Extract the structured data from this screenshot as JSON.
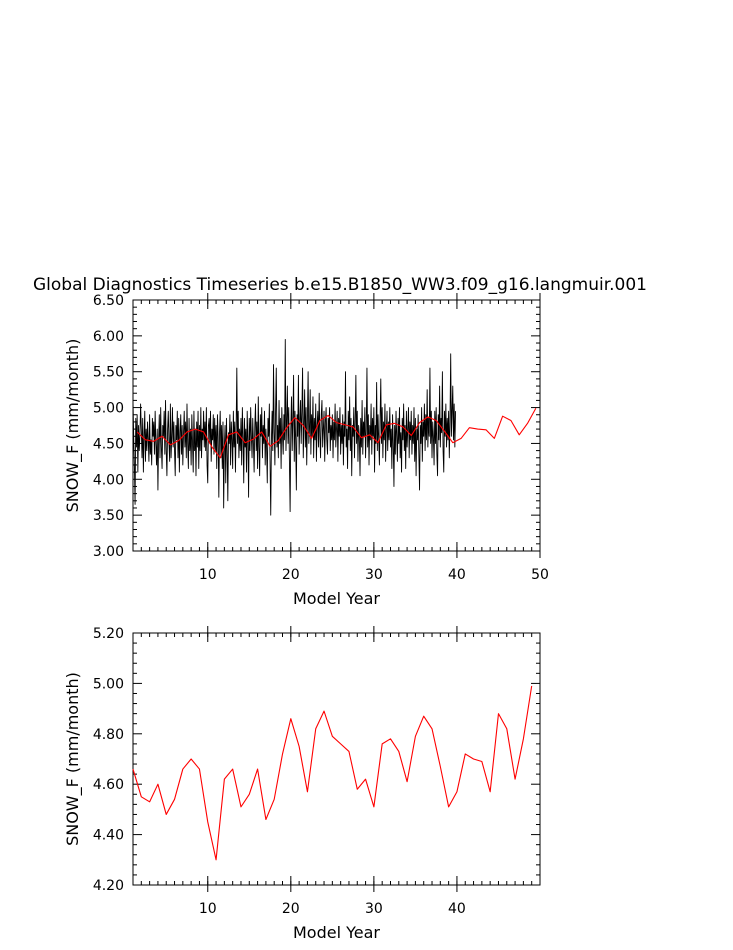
{
  "title": "Global Diagnostics Timeseries b.e15.B1850_WW3.f09_g16.langmuir.001",
  "colors": {
    "monthly": "#000000",
    "annual": "#ff0000"
  },
  "chart_data": [
    {
      "type": "line",
      "xlabel": "Model Year",
      "ylabel": "SNOW_F (mm/month)",
      "xlim": [
        1,
        50
      ],
      "ylim": [
        3.0,
        6.5
      ],
      "xticks": [
        10,
        20,
        30,
        40,
        50
      ],
      "yticks": [
        "3.00",
        "3.50",
        "4.00",
        "4.50",
        "5.00",
        "5.50",
        "6.00",
        "6.50"
      ],
      "series": [
        {
          "color": "monthly",
          "x_start": 1.0,
          "x_step": 0.08333,
          "values": [
            5.1,
            4.6,
            4.2,
            3.65,
            4.85,
            4.45,
            4.9,
            4.1,
            4.75,
            4.4,
            4.6,
            5.05,
            4.7,
            4.3,
            4.85,
            4.1,
            4.6,
            4.95,
            4.25,
            4.7,
            4.4,
            4.8,
            4.55,
            4.25,
            4.9,
            4.35,
            4.55,
            4.2,
            4.85,
            4.6,
            4.8,
            4.35,
            4.95,
            4.5,
            4.2,
            4.7,
            3.85,
            4.55,
            4.9,
            4.3,
            5.0,
            4.45,
            4.15,
            4.75,
            4.6,
            4.95,
            4.35,
            5.1,
            4.4,
            4.05,
            4.7,
            4.95,
            4.5,
            4.25,
            5.05,
            4.3,
            4.6,
            5.0,
            4.45,
            4.8,
            4.4,
            4.05,
            4.75,
            4.55,
            4.95,
            4.3,
            4.85,
            4.1,
            4.65,
            4.9,
            4.35,
            4.75,
            4.2,
            4.65,
            4.95,
            4.45,
            4.8,
            4.3,
            5.05,
            4.5,
            4.15,
            4.85,
            4.4,
            4.7,
            4.2,
            4.9,
            4.5,
            4.1,
            4.95,
            4.4,
            4.7,
            4.05,
            4.8,
            4.45,
            4.95,
            4.15,
            4.75,
            4.4,
            5.0,
            4.3,
            4.7,
            4.55,
            4.95,
            4.45,
            4.8,
            4.4,
            5.0,
            4.2,
            3.95,
            4.75,
            4.85,
            4.5,
            4.95,
            4.25,
            4.7,
            4.55,
            4.9,
            4.35,
            4.85,
            4.4,
            4.75,
            4.15,
            4.9,
            4.6,
            3.75,
            4.65,
            4.95,
            4.3,
            4.75,
            4.15,
            4.8,
            3.6,
            4.45,
            4.75,
            3.95,
            4.85,
            4.4,
            3.7,
            4.65,
            4.5,
            4.9,
            4.2,
            4.8,
            4.55,
            4.15,
            4.95,
            4.45,
            4.8,
            4.1,
            4.7,
            5.55,
            4.5,
            4.95,
            4.3,
            4.7,
            4.4,
            4.85,
            4.2,
            5.0,
            4.6,
            3.95,
            4.85,
            4.45,
            4.7,
            4.1,
            4.95,
            4.55,
            3.75,
            4.85,
            4.4,
            5.0,
            4.6,
            4.3,
            4.85,
            4.5,
            4.1,
            4.75,
            5.05,
            4.4,
            4.8,
            4.15,
            5.15,
            4.45,
            4.05,
            4.9,
            4.6,
            5.0,
            4.3,
            4.75,
            4.5,
            4.95,
            4.2,
            4.7,
            4.45,
            3.95,
            4.85,
            4.6,
            5.05,
            4.25,
            3.5,
            4.55,
            4.95,
            4.4,
            5.6,
            4.7,
            4.2,
            4.95,
            5.55,
            4.45,
            4.75,
            4.3,
            5.1,
            4.5,
            4.85,
            4.15,
            5.0,
            4.6,
            4.35,
            4.9,
            4.55,
            5.95,
            4.4,
            4.8,
            5.3,
            4.5,
            5.0,
            4.25,
            3.55,
            4.7,
            5.15,
            4.4,
            4.85,
            5.45,
            4.25,
            4.95,
            4.55,
            3.85,
            4.9,
            4.6,
            5.45,
            4.35,
            4.8,
            5.1,
            4.5,
            4.95,
            5.55,
            4.3,
            4.75,
            5.25,
            4.45,
            5.0,
            4.2,
            4.85,
            5.5,
            4.5,
            4.7,
            5.25,
            4.35,
            4.9,
            4.6,
            5.15,
            4.3,
            4.85,
            4.55,
            5.05,
            4.25,
            4.75,
            4.95,
            4.45,
            5.2,
            4.6,
            4.3,
            4.9,
            5.1,
            4.45,
            4.7,
            4.95,
            4.25,
            4.8,
            5.0,
            4.55,
            4.35,
            4.85,
            4.65,
            5.0,
            4.4,
            4.75,
            4.55,
            4.9,
            4.3,
            4.8,
            4.55,
            5.05,
            4.45,
            4.7,
            4.95,
            4.25,
            4.85,
            4.6,
            5.0,
            4.35,
            4.75,
            4.5,
            4.9,
            4.2,
            4.8,
            4.6,
            5.5,
            4.45,
            4.7,
            4.15,
            4.95,
            4.55,
            5.15,
            4.4,
            4.85,
            4.05,
            4.75,
            4.6,
            5.0,
            4.3,
            4.8,
            5.45,
            4.5,
            4.95,
            4.25,
            4.75,
            4.6,
            4.05,
            4.85,
            4.45,
            5.1,
            4.35,
            4.8,
            4.6,
            5.0,
            4.3,
            4.7,
            5.55,
            4.45,
            4.9,
            4.2,
            4.75,
            4.55,
            5.05,
            4.35,
            4.85,
            4.6,
            5.0,
            4.1,
            4.75,
            4.5,
            5.35,
            4.4,
            4.9,
            4.55,
            4.2,
            4.85,
            5.4,
            4.5,
            5.0,
            4.3,
            4.8,
            4.55,
            5.05,
            4.25,
            4.7,
            4.95,
            4.4,
            4.8,
            4.55,
            5.0,
            4.45,
            4.7,
            4.15,
            4.9,
            4.5,
            3.9,
            4.75,
            4.35,
            4.95,
            4.6,
            4.25,
            4.85,
            4.5,
            5.0,
            4.3,
            4.65,
            4.1,
            4.85,
            4.55,
            5.05,
            4.4,
            4.75,
            4.15,
            4.95,
            4.45,
            4.7,
            5.0,
            4.3,
            4.8,
            4.55,
            4.95,
            4.35,
            4.75,
            4.5,
            5.0,
            4.25,
            4.85,
            4.05,
            4.7,
            4.55,
            4.9,
            4.35,
            3.85,
            4.75,
            4.5,
            5.0,
            4.25,
            4.8,
            4.6,
            5.05,
            4.4,
            4.9,
            4.55,
            5.25,
            4.45,
            4.85,
            4.6,
            5.55,
            4.5,
            4.95,
            4.3,
            4.8,
            4.6,
            4.2,
            4.95,
            4.5,
            5.0,
            4.35,
            4.05,
            4.9,
            4.55,
            5.3,
            4.45,
            4.85,
            4.65,
            5.5,
            4.4,
            4.1,
            4.95,
            4.6,
            5.05,
            4.45,
            4.85,
            4.55,
            4.95,
            4.3,
            4.8,
            5.75,
            4.6,
            4.95,
            5.3,
            4.55,
            5.05,
            4.45,
            4.95
          ]
        },
        {
          "color": "annual",
          "x_start": 1.5,
          "x_step": 1.0,
          "values": [
            4.66,
            4.55,
            4.53,
            4.6,
            4.48,
            4.54,
            4.66,
            4.7,
            4.66,
            4.45,
            4.3,
            4.62,
            4.66,
            4.51,
            4.56,
            4.66,
            4.46,
            4.54,
            4.72,
            4.86,
            4.75,
            4.57,
            4.82,
            4.89,
            4.79,
            4.76,
            4.73,
            4.58,
            4.62,
            4.51,
            4.76,
            4.78,
            4.73,
            4.61,
            4.79,
            4.87,
            4.82,
            4.67,
            4.51,
            4.57,
            4.72,
            4.7,
            4.69,
            4.57,
            4.88,
            4.82,
            4.62,
            4.78,
            4.99
          ]
        }
      ]
    },
    {
      "type": "line",
      "xlabel": "Model Year",
      "ylabel": "SNOW_F (mm/month)",
      "xlim": [
        1,
        50
      ],
      "ylim": [
        4.2,
        5.2
      ],
      "xticks": [
        10,
        20,
        30,
        40
      ],
      "yticks": [
        "4.20",
        "4.40",
        "4.60",
        "4.80",
        "5.00",
        "5.20"
      ],
      "series": [
        {
          "color": "annual",
          "x_start": 1.0,
          "x_step": 1.0,
          "values": [
            4.66,
            4.55,
            4.53,
            4.6,
            4.48,
            4.54,
            4.66,
            4.7,
            4.66,
            4.45,
            4.3,
            4.62,
            4.66,
            4.51,
            4.56,
            4.66,
            4.46,
            4.54,
            4.72,
            4.86,
            4.75,
            4.57,
            4.82,
            4.89,
            4.79,
            4.76,
            4.73,
            4.58,
            4.62,
            4.51,
            4.76,
            4.78,
            4.73,
            4.61,
            4.79,
            4.87,
            4.82,
            4.67,
            4.51,
            4.57,
            4.72,
            4.7,
            4.69,
            4.57,
            4.88,
            4.82,
            4.62,
            4.78,
            4.99
          ]
        }
      ]
    }
  ]
}
